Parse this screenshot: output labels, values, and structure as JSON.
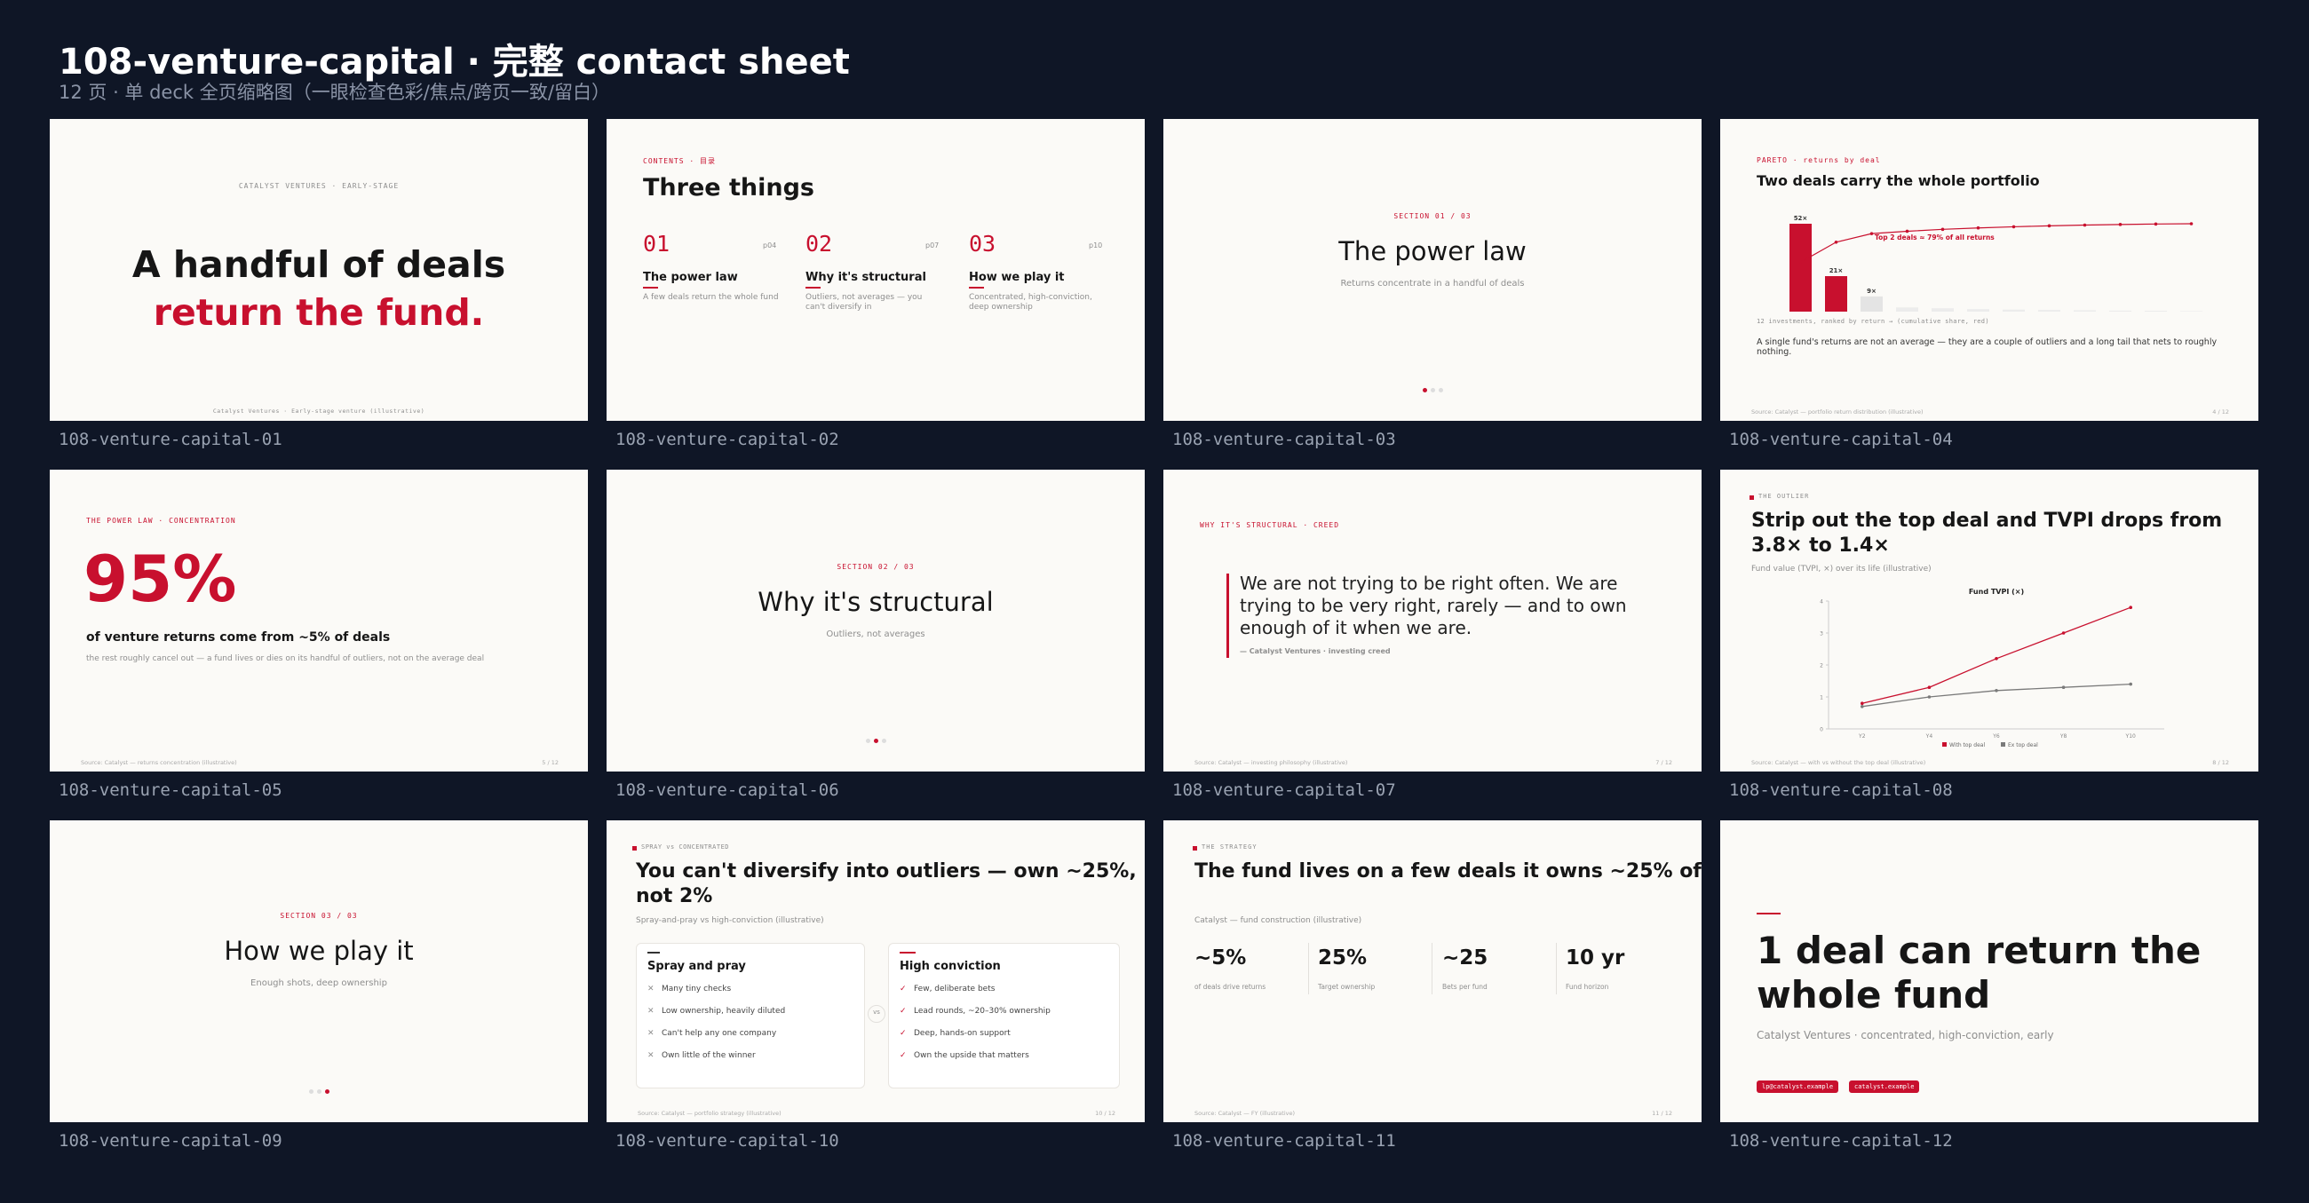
{
  "header": {
    "title": "108-venture-capital · 完整 contact sheet",
    "subtitle": "12 页 · 单 deck 全页缩略图（一眼检查色彩/焦点/跨页一致/留白）"
  },
  "slides": [
    {
      "label": "108-venture-capital-01",
      "kicker": "CATALYST VENTURES · EARLY-STAGE",
      "title": [
        "A handful of deals",
        "return the fund."
      ],
      "footer": "Catalyst Ventures · Early-stage venture (illustrative)"
    },
    {
      "label": "108-venture-capital-02",
      "kicker": "CONTENTS · 目录",
      "title": "Three things",
      "items": [
        {
          "number": "01",
          "page": "p04",
          "heading": "The power law",
          "text": "A few deals return the whole fund"
        },
        {
          "number": "02",
          "page": "p07",
          "heading": "Why it's structural",
          "text": "Outliers, not averages — you can't diversify in"
        },
        {
          "number": "03",
          "page": "p10",
          "heading": "How we play it",
          "text": "Concentrated, high-conviction, deep ownership"
        }
      ]
    },
    {
      "label": "108-venture-capital-03",
      "kicker": "SECTION 01 / 03",
      "title": "The power law",
      "subtitle": "Returns concentrate in a handful of deals"
    },
    {
      "label": "108-venture-capital-04",
      "kicker": "PARETO · returns by deal",
      "title": "Two deals carry the whole portfolio",
      "chart": {
        "type": "bar",
        "values": [
          52,
          21,
          9,
          2.5,
          2,
          1.5,
          1.2,
          1,
          0.8,
          0.6,
          0.5,
          0.3
        ],
        "value_labels": [
          "52×",
          "21×",
          "9×",
          null,
          null,
          null,
          null,
          null,
          null,
          null,
          null,
          null
        ],
        "colors": [
          "#c8102e",
          "#c8102e",
          "#e4e4e4",
          "#ececec",
          "#ececec",
          "#ececec",
          "#ececec",
          "#ececec",
          "#ececec",
          "#ececec",
          "#ececec",
          "#ececec"
        ],
        "line_color": "#c8102e",
        "annotation": "Top 2 deals ≈ 79% of all returns",
        "x_label": "12 investments, ranked by return → (cumulative share, red)"
      },
      "body": "A single fund's returns are not an average — they are a couple of outliers and a long tail that nets to roughly nothing.",
      "source": "Source: Catalyst — portfolio return distribution (illustrative)",
      "page": "4 / 12"
    },
    {
      "label": "108-venture-capital-05",
      "kicker": "THE POWER LAW · CONCENTRATION",
      "stat": "95%",
      "headline": "of venture returns come from ~5% of deals",
      "text": "the rest roughly cancel out — a fund lives or dies on its handful of outliers, not on the average deal",
      "source": "Source: Catalyst — returns concentration (illustrative)",
      "page": "5 / 12"
    },
    {
      "label": "108-venture-capital-06",
      "kicker": "SECTION 02 / 03",
      "title": "Why it's structural",
      "subtitle": "Outliers, not averages"
    },
    {
      "label": "108-venture-capital-07",
      "kicker": "WHY IT'S STRUCTURAL · CREED",
      "quote": [
        "We are not trying to be right often. We are",
        "trying to be very right, rarely — and to own",
        "enough of it when we are."
      ],
      "attribution": "— Catalyst Ventures · investing creed",
      "source": "Source: Catalyst — investing philosophy (illustrative)",
      "page": "7 / 12"
    },
    {
      "label": "108-venture-capital-08",
      "kicker": "THE OUTLIER",
      "title": [
        "Strip out the top deal and TVPI drops from",
        "3.8× to 1.4×"
      ],
      "subtitle": "Fund value (TVPI, ×) over its life (illustrative)",
      "chart": {
        "type": "line",
        "title": "Fund TVPI (×)",
        "categories": [
          "Y2",
          "Y4",
          "Y6",
          "Y8",
          "Y10"
        ],
        "series": [
          {
            "name": "With top deal",
            "color": "#c8102e",
            "values": [
              0.8,
              1.3,
              2.2,
              3.0,
              3.8
            ]
          },
          {
            "name": "Ex top deal",
            "color": "#7a7a7a",
            "values": [
              0.7,
              1.0,
              1.2,
              1.3,
              1.4
            ]
          }
        ],
        "ylim": [
          0,
          4
        ],
        "yticks": [
          0,
          1,
          2,
          3,
          4
        ]
      },
      "source": "Source: Catalyst — with vs without the top deal (illustrative)",
      "page": "8 / 12"
    },
    {
      "label": "108-venture-capital-09",
      "kicker": "SECTION 03 / 03",
      "title": "How we play it",
      "subtitle": "Enough shots, deep ownership"
    },
    {
      "label": "108-venture-capital-10",
      "kicker": "SPRAY vs CONCENTRATED",
      "title": [
        "You can't diversify into outliers — own ~25%,",
        "not 2%"
      ],
      "subtitle": "Spray-and-pray vs high-conviction (illustrative)",
      "columns": [
        {
          "heading": "Spray and pray",
          "items": [
            "Many tiny checks",
            "Low ownership, heavily diluted",
            "Can't help any one company",
            "Own little of the winner"
          ]
        },
        {
          "heading": "High conviction",
          "items": [
            "Few, deliberate bets",
            "Lead rounds, ~20–30% ownership",
            "Deep, hands-on support",
            "Own the upside that matters"
          ]
        }
      ],
      "divider": "vs",
      "source": "Source: Catalyst — portfolio strategy (illustrative)",
      "page": "10 / 12"
    },
    {
      "label": "108-venture-capital-11",
      "kicker": "THE STRATEGY",
      "title": "The fund lives on a few deals it owns ~25% of",
      "subtitle": "Catalyst — fund construction (illustrative)",
      "stats": [
        {
          "value": "~5%",
          "label": "of deals drive returns"
        },
        {
          "value": "25%",
          "label": "Target ownership"
        },
        {
          "value": "~25",
          "label": "Bets per fund"
        },
        {
          "value": "10 yr",
          "label": "Fund horizon"
        }
      ],
      "source": "Source: Catalyst — FY (illustrative)",
      "page": "11 / 12"
    },
    {
      "label": "108-venture-capital-12",
      "title": [
        "1 deal can return the",
        "whole fund"
      ],
      "subtitle": "Catalyst Ventures · concentrated, high-conviction, early",
      "contacts": [
        "lp@catalyst.example",
        "catalyst.example"
      ]
    }
  ]
}
